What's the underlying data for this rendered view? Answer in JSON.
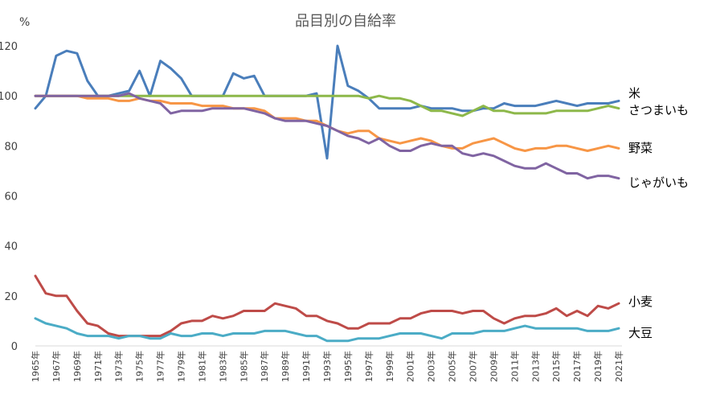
{
  "chart_data": {
    "type": "line",
    "title": "品目別の自給率",
    "ylabel": "%",
    "xlabel": "",
    "ylim": [
      0,
      120
    ],
    "yticks": [
      0,
      20,
      40,
      60,
      80,
      100,
      120
    ],
    "grid": false,
    "legend": "none",
    "x": [
      "1965年",
      "1966年",
      "1967年",
      "1968年",
      "1969年",
      "1970年",
      "1971年",
      "1972年",
      "1973年",
      "1974年",
      "1975年",
      "1976年",
      "1977年",
      "1978年",
      "1979年",
      "1980年",
      "1981年",
      "1982年",
      "1983年",
      "1984年",
      "1985年",
      "1986年",
      "1987年",
      "1988年",
      "1989年",
      "1990年",
      "1991年",
      "1992年",
      "1993年",
      "1994年",
      "1995年",
      "1996年",
      "1997年",
      "1998年",
      "1999年",
      "2000年",
      "2001年",
      "2002年",
      "2003年",
      "2004年",
      "2005年",
      "2006年",
      "2007年",
      "2008年",
      "2009年",
      "2010年",
      "2011年",
      "2012年",
      "2013年",
      "2014年",
      "2015年",
      "2016年",
      "2017年",
      "2018年",
      "2019年",
      "2020年",
      "2021年"
    ],
    "xtick_labels": [
      "1965年",
      "1967年",
      "1969年",
      "1971年",
      "1973年",
      "1975年",
      "1977年",
      "1979年",
      "1981年",
      "1983年",
      "1985年",
      "1987年",
      "1989年",
      "1991年",
      "1993年",
      "1995年",
      "1997年",
      "1999年",
      "2001年",
      "2003年",
      "2005年",
      "2007年",
      "2009年",
      "2011年",
      "2013年",
      "2015年",
      "2017年",
      "2019年",
      "2021年"
    ],
    "series": [
      {
        "name": "米",
        "color": "#4a7ebb",
        "values": [
          95,
          100,
          116,
          118,
          117,
          106,
          100,
          100,
          101,
          102,
          110,
          100,
          114,
          111,
          107,
          100,
          100,
          100,
          100,
          109,
          107,
          108,
          100,
          100,
          100,
          100,
          100,
          101,
          75,
          120,
          104,
          102,
          99,
          95,
          95,
          95,
          95,
          96,
          95,
          95,
          95,
          94,
          94,
          95,
          95,
          97,
          96,
          96,
          96,
          97,
          98,
          97,
          96,
          97,
          97,
          97,
          98
        ]
      },
      {
        "name": "さつまいも",
        "color": "#8db84a",
        "values": [
          100,
          100,
          100,
          100,
          100,
          100,
          100,
          100,
          100,
          100,
          100,
          100,
          100,
          100,
          100,
          100,
          100,
          100,
          100,
          100,
          100,
          100,
          100,
          100,
          100,
          100,
          100,
          100,
          100,
          100,
          100,
          100,
          99,
          100,
          99,
          99,
          98,
          96,
          94,
          94,
          93,
          92,
          94,
          96,
          94,
          94,
          93,
          93,
          93,
          93,
          94,
          94,
          94,
          94,
          95,
          96,
          95
        ]
      },
      {
        "name": "野菜",
        "color": "#f79646",
        "values": [
          100,
          100,
          100,
          100,
          100,
          99,
          99,
          99,
          98,
          98,
          99,
          98,
          98,
          97,
          97,
          97,
          96,
          96,
          96,
          95,
          95,
          95,
          94,
          91,
          91,
          91,
          90,
          90,
          88,
          86,
          85,
          86,
          86,
          83,
          82,
          81,
          82,
          83,
          82,
          80,
          79,
          79,
          81,
          82,
          83,
          81,
          79,
          78,
          79,
          79,
          80,
          80,
          79,
          78,
          79,
          80,
          79
        ]
      },
      {
        "name": "じゃがいも",
        "color": "#8064a2",
        "values": [
          100,
          100,
          100,
          100,
          100,
          100,
          100,
          100,
          100,
          101,
          99,
          98,
          97,
          93,
          94,
          94,
          94,
          95,
          95,
          95,
          95,
          94,
          93,
          91,
          90,
          90,
          90,
          89,
          88,
          86,
          84,
          83,
          81,
          83,
          80,
          78,
          78,
          80,
          81,
          80,
          80,
          77,
          76,
          77,
          76,
          74,
          72,
          71,
          71,
          73,
          71,
          69,
          69,
          67,
          68,
          68,
          67
        ]
      },
      {
        "name": "小麦",
        "color": "#be4b48",
        "values": [
          28,
          21,
          20,
          20,
          14,
          9,
          8,
          5,
          4,
          4,
          4,
          4,
          4,
          6,
          9,
          10,
          10,
          12,
          11,
          12,
          14,
          14,
          14,
          17,
          16,
          15,
          12,
          12,
          10,
          9,
          7,
          7,
          9,
          9,
          9,
          11,
          11,
          13,
          14,
          14,
          14,
          13,
          14,
          14,
          11,
          9,
          11,
          12,
          12,
          13,
          15,
          12,
          14,
          12,
          16,
          15,
          17
        ]
      },
      {
        "name": "大豆",
        "color": "#4bacc6",
        "values": [
          11,
          9,
          8,
          7,
          5,
          4,
          4,
          4,
          3,
          4,
          4,
          3,
          3,
          5,
          4,
          4,
          5,
          5,
          4,
          5,
          5,
          5,
          6,
          6,
          6,
          5,
          4,
          4,
          2,
          2,
          2,
          3,
          3,
          3,
          4,
          5,
          5,
          5,
          4,
          3,
          5,
          5,
          5,
          6,
          6,
          6,
          7,
          8,
          7,
          7,
          7,
          7,
          7,
          6,
          6,
          6,
          7
        ]
      }
    ]
  }
}
